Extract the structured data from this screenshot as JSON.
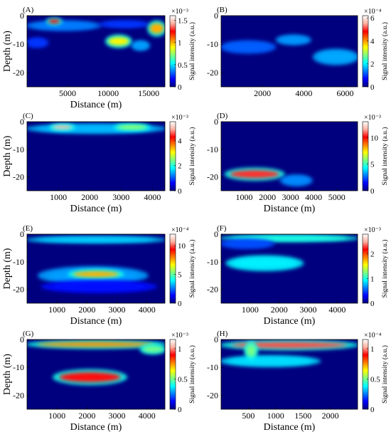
{
  "figure": {
    "colormap": [
      "#00007f",
      "#0000ff",
      "#007fff",
      "#00ffff",
      "#7fff7f",
      "#ffff00",
      "#ff7f00",
      "#ff0000",
      "#ffb0a0",
      "#ffffff"
    ]
  },
  "chart_data": [
    {
      "type": "heatmap",
      "label": "(A)",
      "xlabel": "Distance (m)",
      "ylabel": "Depth (m)",
      "cbar_label": "Signal intensity  (a.u.)",
      "xlim": [
        0,
        17000
      ],
      "ylim": [
        -25,
        0
      ],
      "xticks": [
        5000,
        10000,
        15000
      ],
      "yticks": [
        0,
        -10,
        -20
      ],
      "clim": [
        0,
        1.6
      ],
      "cbar_ticks": [
        0,
        0.5,
        1,
        1.5
      ],
      "cbar_exponent": "×10⁻³",
      "features": [
        {
          "x0": 0,
          "x1": 9000,
          "y0": -2,
          "y1": -5,
          "intensity": 0.35
        },
        {
          "x0": 2500,
          "x1": 4200,
          "y0": -1,
          "y1": -3,
          "intensity": 1.25
        },
        {
          "x0": 9000,
          "x1": 15000,
          "y0": -2,
          "y1": -4,
          "intensity": 0.25
        },
        {
          "x0": 15000,
          "x1": 17000,
          "y0": -2,
          "y1": -7,
          "intensity": 1.0
        },
        {
          "x0": 0,
          "x1": 2500,
          "y0": -8,
          "y1": -11,
          "intensity": 0.25
        },
        {
          "x0": 9800,
          "x1": 12800,
          "y0": -7,
          "y1": -11,
          "intensity": 0.9
        },
        {
          "x0": 13000,
          "x1": 15000,
          "y0": -9,
          "y1": -12,
          "intensity": 0.4
        }
      ]
    },
    {
      "type": "heatmap",
      "label": "(B)",
      "xlabel": "",
      "ylabel": "",
      "cbar_label": "Signal intensity  (a.u.)",
      "xlim": [
        0,
        6600
      ],
      "ylim": [
        -25,
        0
      ],
      "xticks": [
        2000,
        4000,
        6000
      ],
      "yticks": [
        0,
        -10,
        -20
      ],
      "clim": [
        0,
        6.2
      ],
      "cbar_ticks": [
        0,
        2,
        4,
        6
      ],
      "cbar_exponent": "×10⁻⁴",
      "features": [
        {
          "x0": 0,
          "x1": 2600,
          "y0": -9,
          "y1": -13,
          "intensity": 1.2
        },
        {
          "x0": 2700,
          "x1": 4300,
          "y0": -7,
          "y1": -10,
          "intensity": 1.5
        },
        {
          "x0": 4500,
          "x1": 6600,
          "y0": -12,
          "y1": -17,
          "intensity": 1.6
        }
      ]
    },
    {
      "type": "heatmap",
      "label": "(C)",
      "xlabel": "Distance (m)",
      "ylabel": "Depth (m)",
      "cbar_label": "Signal intensity  (a.u.)",
      "xlim": [
        0,
        4400
      ],
      "ylim": [
        -25,
        0
      ],
      "xticks": [
        1000,
        2000,
        3000,
        4000
      ],
      "yticks": [
        0,
        -10,
        -20
      ],
      "clim": [
        0,
        5.5
      ],
      "cbar_ticks": [
        0,
        2,
        4
      ],
      "cbar_exponent": "×10⁻³",
      "features": [
        {
          "x0": 0,
          "x1": 4400,
          "y0": -1,
          "y1": -4,
          "intensity": 1.5
        },
        {
          "x0": 750,
          "x1": 1500,
          "y0": -1,
          "y1": -3,
          "intensity": 5.0
        },
        {
          "x0": 2800,
          "x1": 3900,
          "y0": -1,
          "y1": -3,
          "intensity": 2.6
        }
      ]
    },
    {
      "type": "heatmap",
      "label": "(D)",
      "xlabel": "Distance (m)",
      "ylabel": "",
      "cbar_label": "Signal intensity  (a.u.)",
      "xlim": [
        0,
        5900
      ],
      "ylim": [
        -25,
        0
      ],
      "xticks": [
        1000,
        2000,
        3000,
        4000,
        5000
      ],
      "yticks": [
        0,
        -10,
        -20
      ],
      "clim": [
        0,
        13
      ],
      "cbar_ticks": [
        0,
        5,
        10
      ],
      "cbar_exponent": "×10⁻³",
      "features": [
        {
          "x0": 200,
          "x1": 2700,
          "y0": -17,
          "y1": -21,
          "intensity": 10.5
        },
        {
          "x0": 2600,
          "x1": 3900,
          "y0": -19.5,
          "y1": -23,
          "intensity": 3.0
        }
      ]
    },
    {
      "type": "heatmap",
      "label": "(E)",
      "xlabel": "Distance (m)",
      "ylabel": "Depth (m)",
      "cbar_label": "Signal intensity  (a.u.)",
      "xlim": [
        0,
        4600
      ],
      "ylim": [
        -25,
        0
      ],
      "xticks": [
        1000,
        2000,
        3000,
        4000
      ],
      "yticks": [
        0,
        -10,
        -20
      ],
      "clim": [
        0,
        12
      ],
      "cbar_ticks": [
        0,
        5,
        10
      ],
      "cbar_exponent": "×10⁻⁴",
      "features": [
        {
          "x0": 0,
          "x1": 4600,
          "y0": -1,
          "y1": -3,
          "intensity": 3.5
        },
        {
          "x0": 400,
          "x1": 4000,
          "y0": -12,
          "y1": -18,
          "intensity": 3.0
        },
        {
          "x0": 1400,
          "x1": 3200,
          "y0": -13,
          "y1": -16,
          "intensity": 7.5
        },
        {
          "x0": 500,
          "x1": 4300,
          "y0": -17,
          "y1": -21,
          "intensity": 1.5
        }
      ]
    },
    {
      "type": "heatmap",
      "label": "(F)",
      "xlabel": "Distance (m)",
      "ylabel": "",
      "cbar_label": "Signal intensity  (a.u.)",
      "xlim": [
        0,
        4700
      ],
      "ylim": [
        -25,
        0
      ],
      "xticks": [
        1000,
        2000,
        3000,
        4000
      ],
      "yticks": [
        0,
        -10,
        -20
      ],
      "clim": [
        0,
        2.8
      ],
      "cbar_ticks": [
        0,
        1,
        2
      ],
      "cbar_exponent": "×10⁻³",
      "features": [
        {
          "x0": 0,
          "x1": 4700,
          "y0": -0.5,
          "y1": -2.5,
          "intensity": 1.0
        },
        {
          "x0": 200,
          "x1": 2800,
          "y0": -8,
          "y1": -13,
          "intensity": 0.9
        },
        {
          "x0": 0,
          "x1": 1800,
          "y0": -2,
          "y1": -5,
          "intensity": 0.5
        }
      ]
    },
    {
      "type": "heatmap",
      "label": "(G)",
      "xlabel": "Distance (m)",
      "ylabel": "Depth (m)",
      "cbar_label": "Signal intensity  (a.u.)",
      "xlim": [
        0,
        4600
      ],
      "ylim": [
        -25,
        0
      ],
      "xticks": [
        1000,
        2000,
        3000,
        4000
      ],
      "yticks": [
        0,
        -10,
        -20
      ],
      "clim": [
        0,
        1.15
      ],
      "cbar_ticks": [
        0,
        0.5,
        1
      ],
      "cbar_exponent": "×10⁻³",
      "features": [
        {
          "x0": 0,
          "x1": 4600,
          "y0": -0.5,
          "y1": -3,
          "intensity": 0.75
        },
        {
          "x0": 900,
          "x1": 3300,
          "y0": -11,
          "y1": -16,
          "intensity": 0.9
        },
        {
          "x0": 3800,
          "x1": 4600,
          "y0": -2,
          "y1": -5,
          "intensity": 0.5
        }
      ]
    },
    {
      "type": "heatmap",
      "label": "(H)",
      "xlabel": "Distance (m)",
      "ylabel": "",
      "cbar_label": "Signal intensity  (a.u.)",
      "xlim": [
        0,
        2500
      ],
      "ylim": [
        -25,
        0
      ],
      "xticks": [
        500,
        1000,
        1500,
        2000
      ],
      "yticks": [
        0,
        -10,
        -20
      ],
      "clim": [
        0,
        1.15
      ],
      "cbar_ticks": [
        0,
        0.5,
        1
      ],
      "cbar_exponent": "×10⁻⁴",
      "features": [
        {
          "x0": 0,
          "x1": 2500,
          "y0": -0.5,
          "y1": -3.5,
          "intensity": 0.95
        },
        {
          "x0": 0,
          "x1": 1800,
          "y0": -6,
          "y1": -9.5,
          "intensity": 0.35
        },
        {
          "x0": 450,
          "x1": 650,
          "y0": -1,
          "y1": -7,
          "intensity": 0.5
        }
      ]
    }
  ]
}
